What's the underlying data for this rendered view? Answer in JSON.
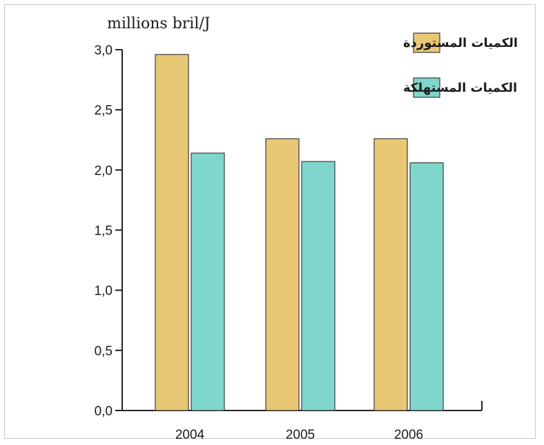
{
  "chart_data": {
    "type": "bar",
    "title": "",
    "unit_label": "millions bril/J",
    "xlabel": "",
    "ylabel": "",
    "categories": [
      "2004",
      "2005",
      "2006"
    ],
    "series": [
      {
        "name": "الكميات المستوردة",
        "values": [
          2.96,
          2.26,
          2.26
        ],
        "color": "#e8c775"
      },
      {
        "name": "الكميات المستهلكة",
        "values": [
          2.14,
          2.07,
          2.06
        ],
        "color": "#7fd6cc"
      }
    ],
    "ylim": [
      0,
      3.0
    ],
    "yticks": [
      "0,0",
      "0,5",
      "1,0",
      "1,5",
      "2,0",
      "2,5",
      "3,0"
    ],
    "grid": false,
    "legend_position": "top-right"
  }
}
